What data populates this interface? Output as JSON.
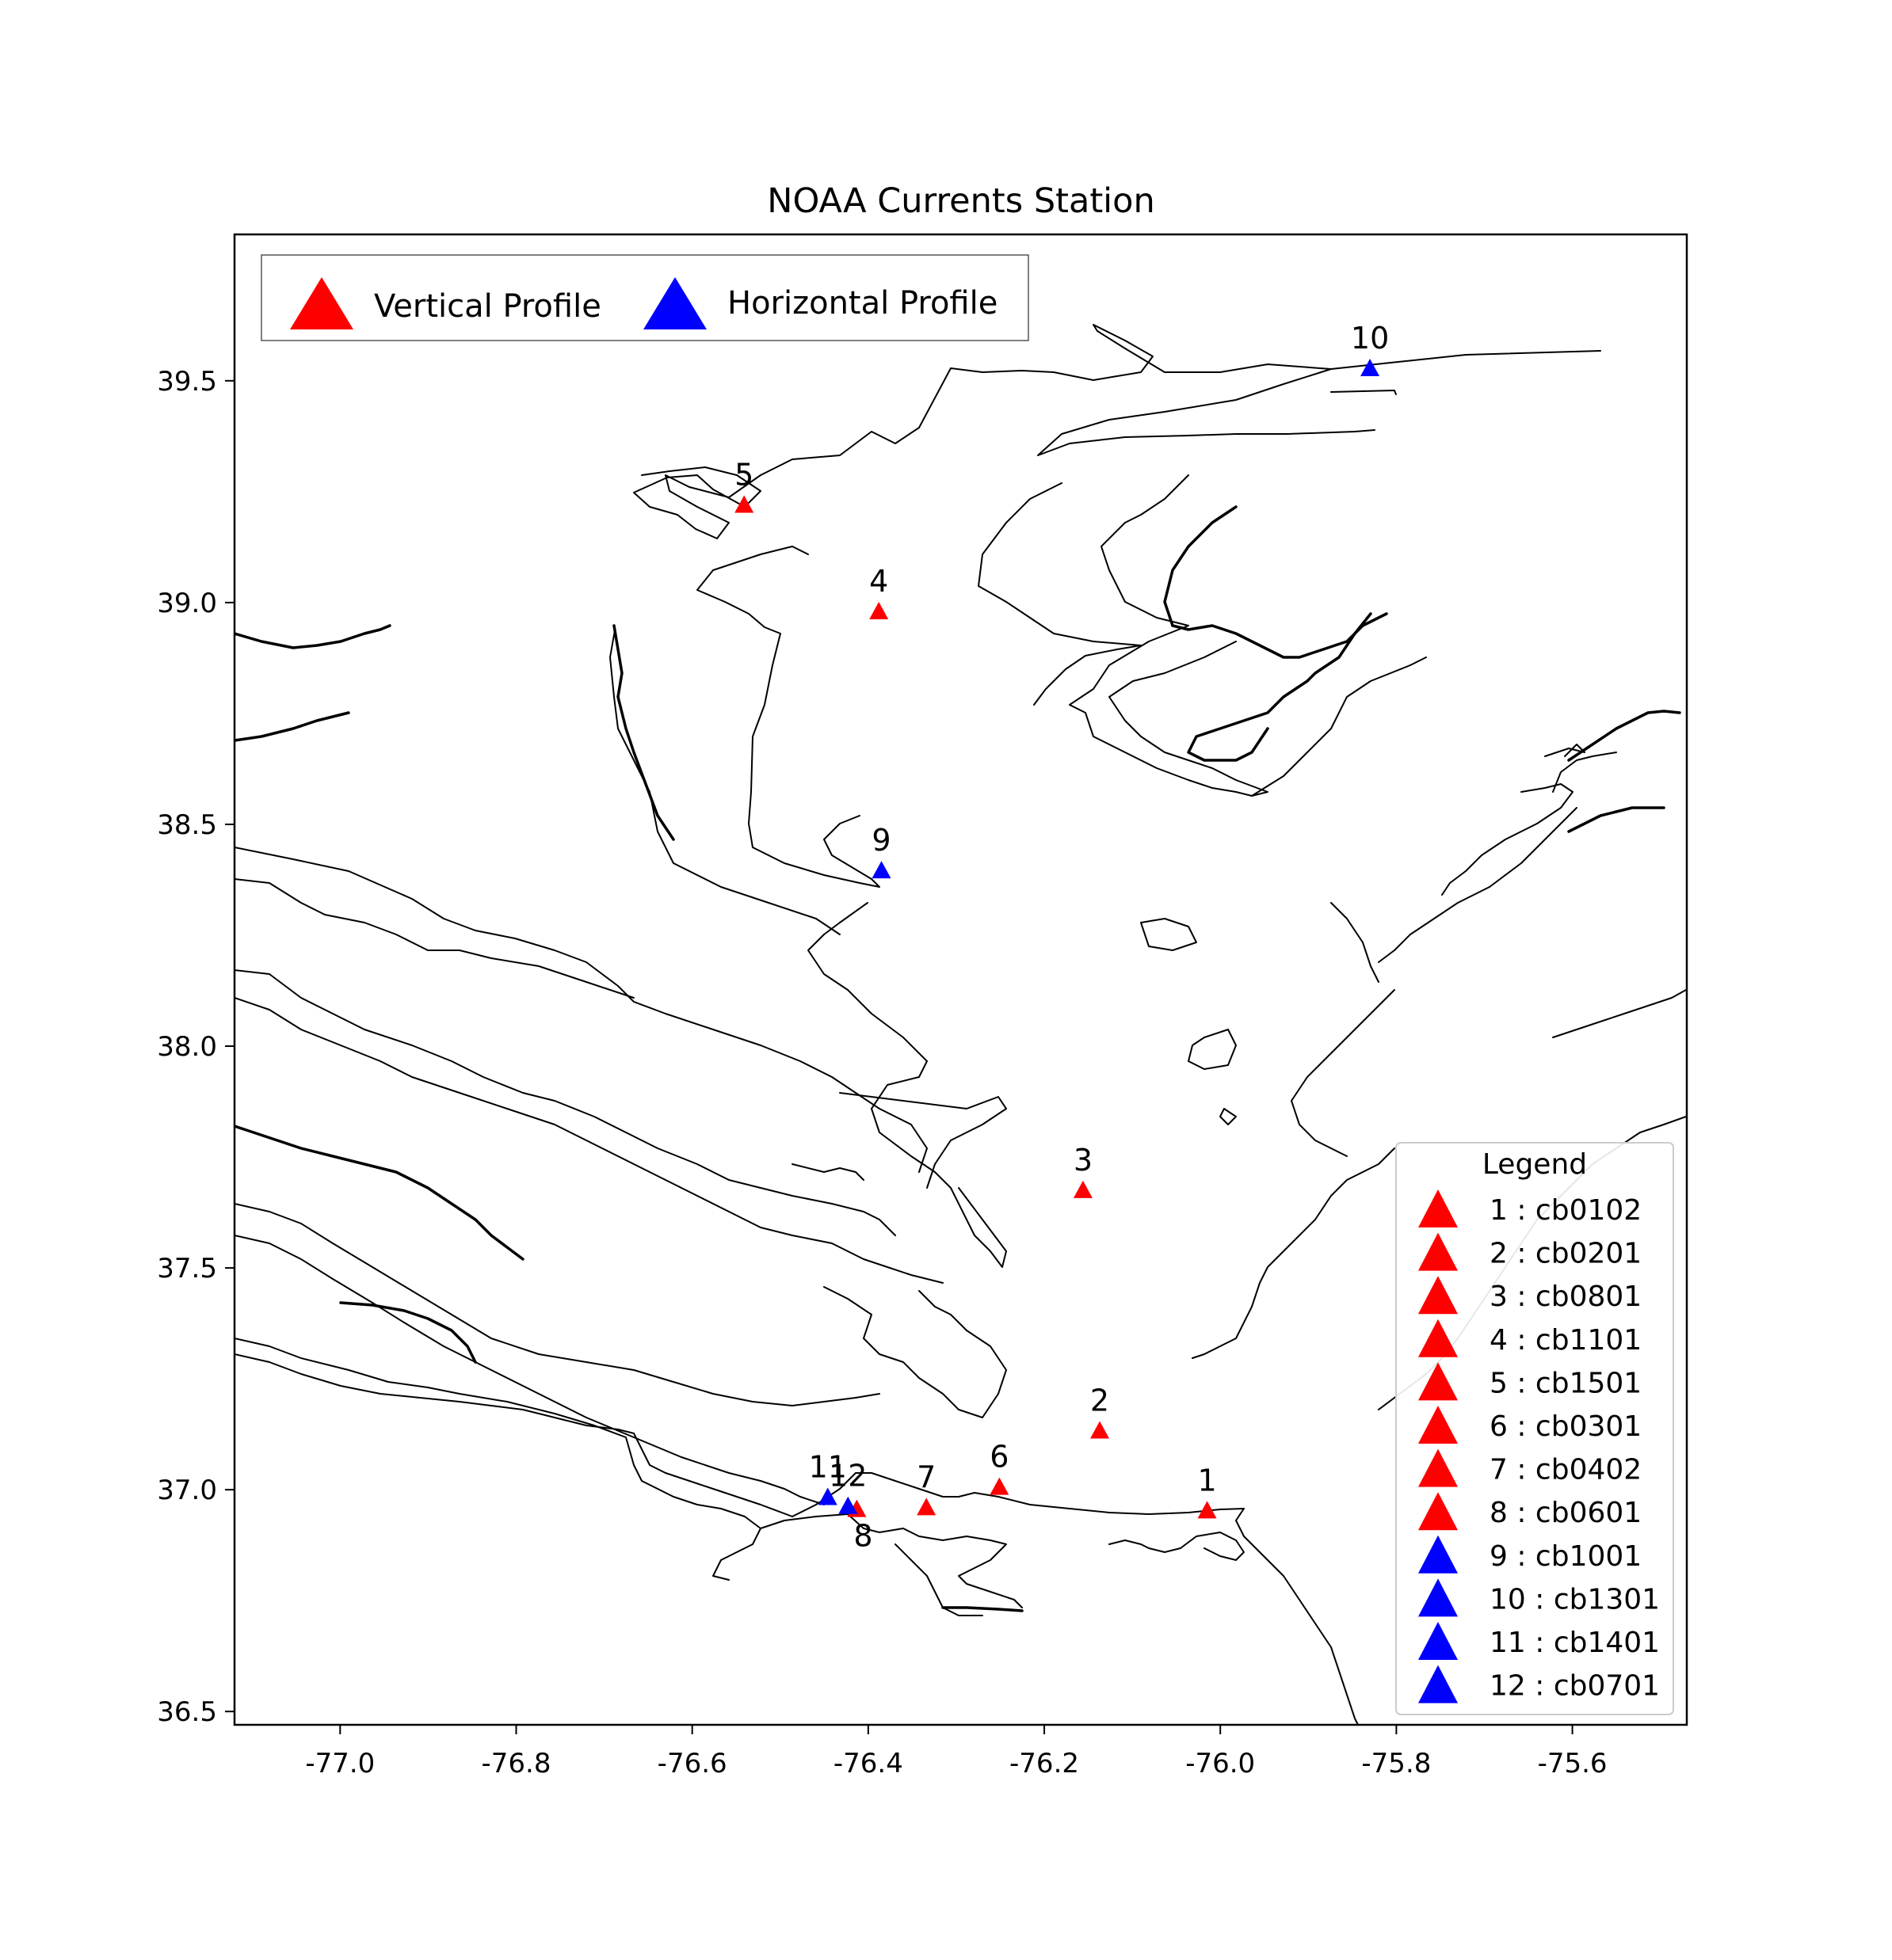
{
  "title": "NOAA Currents Station",
  "colors": {
    "vertical": "#ff0000",
    "horizontal": "#0000ff",
    "coast": "#000000"
  },
  "axes": {
    "xlim": [
      -77.12,
      -75.47
    ],
    "ylim": [
      36.47,
      39.83
    ],
    "xticks": [
      "-77.0",
      "-76.8",
      "-76.6",
      "-76.4",
      "-76.2",
      "-76.0",
      "-75.8",
      "-75.6"
    ],
    "xtick_values": [
      -77.0,
      -76.8,
      -76.6,
      -76.4,
      -76.2,
      -76.0,
      -75.8,
      -75.6
    ],
    "yticks": [
      "36.5",
      "37.0",
      "37.5",
      "38.0",
      "38.5",
      "39.0",
      "39.5"
    ],
    "ytick_values": [
      36.5,
      37.0,
      37.5,
      38.0,
      38.5,
      39.0,
      39.5
    ]
  },
  "legend_top": {
    "items": [
      {
        "label": "Vertical Profile",
        "type": "vertical"
      },
      {
        "label": "Horizontal Profile",
        "type": "horizontal"
      }
    ]
  },
  "legend_stations": {
    "title": "Legend",
    "items": [
      "1 : cb0102",
      "2 : cb0201",
      "3 : cb0801",
      "4 : cb1101",
      "5 : cb1501",
      "6 : cb0301",
      "7 : cb0402",
      "8 : cb0601",
      "9 : cb1001",
      "10 : cb1301",
      "11 : cb1401",
      "12 : cb0701"
    ]
  },
  "chart_data": {
    "type": "scatter",
    "title": "NOAA Currents Station",
    "xlabel": "",
    "ylabel": "",
    "xlim": [
      -77.12,
      -75.47
    ],
    "ylim": [
      36.47,
      39.83
    ],
    "stations": [
      {
        "label": "1",
        "id": "cb0102",
        "lon": -76.015,
        "lat": 36.955,
        "type": "vertical"
      },
      {
        "label": "2",
        "id": "cb0201",
        "lon": -76.137,
        "lat": 37.135,
        "type": "vertical"
      },
      {
        "label": "3",
        "id": "cb0801",
        "lon": -76.156,
        "lat": 37.677,
        "type": "vertical"
      },
      {
        "label": "4",
        "id": "cb1101",
        "lon": -76.388,
        "lat": 38.982,
        "type": "vertical"
      },
      {
        "label": "5",
        "id": "cb1501",
        "lon": -76.541,
        "lat": 39.222,
        "type": "vertical"
      },
      {
        "label": "6",
        "id": "cb0301",
        "lon": -76.251,
        "lat": 37.008,
        "type": "vertical"
      },
      {
        "label": "7",
        "id": "cb0402",
        "lon": -76.334,
        "lat": 36.962,
        "type": "vertical"
      },
      {
        "label": "8",
        "id": "cb0601",
        "lon": -76.413,
        "lat": 36.958,
        "type": "vertical"
      },
      {
        "label": "9",
        "id": "cb1001",
        "lon": -76.385,
        "lat": 38.398,
        "type": "horizontal"
      },
      {
        "label": "10",
        "id": "cb1301",
        "lon": -75.83,
        "lat": 39.53,
        "type": "horizontal"
      },
      {
        "label": "11",
        "id": "cb1401",
        "lon": -76.446,
        "lat": 36.985,
        "type": "horizontal"
      },
      {
        "label": "12",
        "id": "cb0701",
        "lon": -76.423,
        "lat": 36.965,
        "type": "horizontal"
      }
    ]
  }
}
